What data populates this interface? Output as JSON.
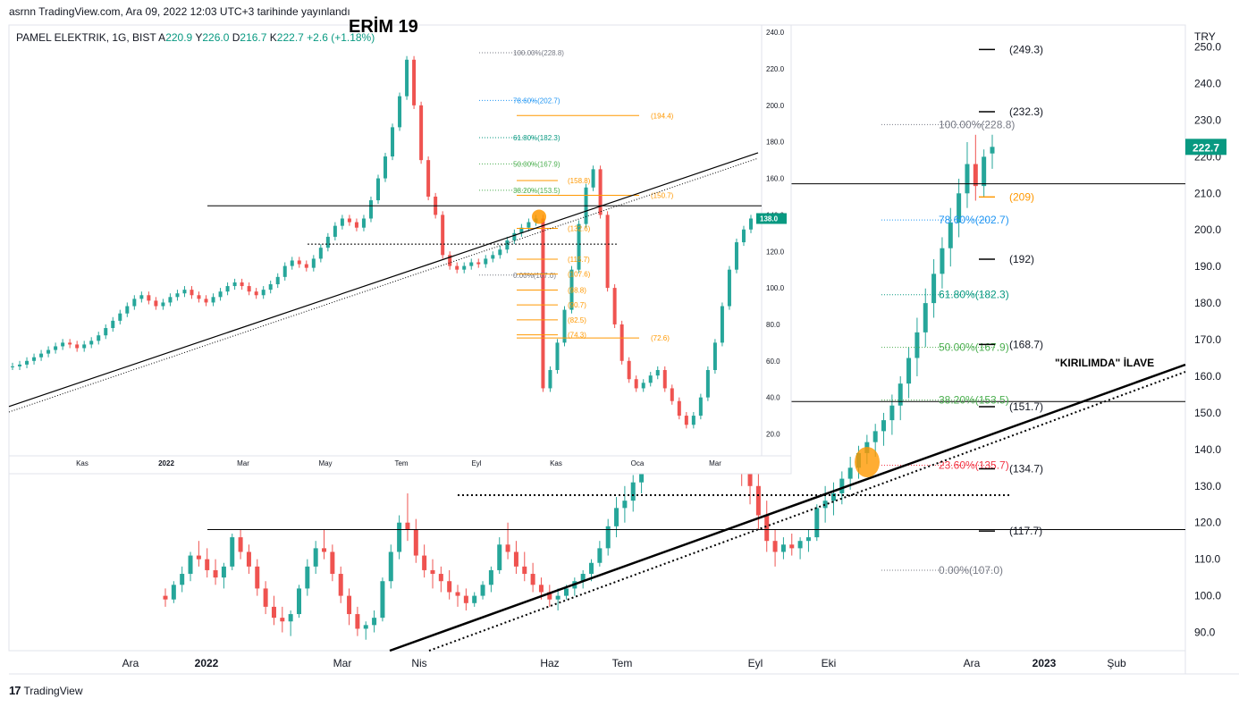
{
  "header": {
    "text": "asrnn TradingView.com, Ara 09, 2022 12:03 UTC+3 tarihinde yayınlandı"
  },
  "footer": {
    "brand": "TradingView",
    "logo_glyph": "17"
  },
  "colors": {
    "up": "#26a69a",
    "down": "#ef5350",
    "fib_gray": "#787b86",
    "fib_blue": "#2196f3",
    "fib_teal": "#089981",
    "fib_green": "#4caf50",
    "fib_red": "#f23645",
    "orange": "#ff9800",
    "axis_text": "#131722",
    "grid": "#e0e3eb"
  },
  "chart_data": [
    {
      "type": "candlestick",
      "title": "",
      "symbol_line": {
        "name": "PAMEL ELEKTRIK, 1G, BIST",
        "open_label": "A",
        "open": "220.9",
        "high_label": "Y",
        "high": "226.0",
        "low_label": "D",
        "low": "216.7",
        "close_label": "K",
        "close": "222.7",
        "change": "+2.6 (+1.18%)"
      },
      "currency": "TRY",
      "last_price": "222.7",
      "y_ticks": [
        "250.0",
        "240.0",
        "230.0",
        "220.0",
        "210.0",
        "200.0",
        "190.0",
        "180.0",
        "170.0",
        "160.0",
        "150.0",
        "140.0",
        "130.0",
        "120.0",
        "110.0",
        "100.0",
        "90.0"
      ],
      "ylim": [
        85,
        256
      ],
      "x_ticks": [
        "Ara",
        "2022",
        "Mar",
        "Nis",
        "Haz",
        "Tem",
        "Eyl",
        "Eki",
        "Ara",
        "2023",
        "Şub"
      ],
      "fibonacci": [
        {
          "label": "100.00%(228.8)",
          "value": 228.8,
          "color": "fib_gray"
        },
        {
          "label": "78.60%(202.7)",
          "value": 202.7,
          "color": "fib_blue"
        },
        {
          "label": "61.80%(182.3)",
          "value": 182.3,
          "color": "fib_teal"
        },
        {
          "label": "50.00%(167.9)",
          "value": 167.9,
          "color": "fib_green"
        },
        {
          "label": "38.20%(153.5)",
          "value": 153.5,
          "color": "fib_green"
        },
        {
          "label": "23.60%(135.7)",
          "value": 135.7,
          "color": "fib_red"
        },
        {
          "label": "0.00%(107.0)",
          "value": 107.0,
          "color": "fib_gray"
        }
      ],
      "levels": [
        {
          "label": "(249.3)",
          "value": 249.3,
          "color": "axis_text"
        },
        {
          "label": "(232.3)",
          "value": 232.3,
          "color": "axis_text"
        },
        {
          "label": "(209)",
          "value": 209,
          "color": "orange"
        },
        {
          "label": "(192)",
          "value": 192,
          "color": "axis_text"
        },
        {
          "label": "(168.7)",
          "value": 168.7,
          "color": "axis_text"
        },
        {
          "label": "(151.7)",
          "value": 151.7,
          "color": "axis_text"
        },
        {
          "label": "(134.7)",
          "value": 134.7,
          "color": "axis_text"
        },
        {
          "label": "(117.7)",
          "value": 117.7,
          "color": "axis_text"
        }
      ],
      "horizontal_lines": [
        212.6,
        153.1,
        118.1
      ],
      "dotted_level": 127.5,
      "annotation": "\"KIRILIMDA\" İLAVE",
      "series": [
        {
          "name": "",
          "ohlc": [
            [
              100,
              102,
              97,
              99
            ],
            [
              99,
              104,
              98,
              103
            ],
            [
              103,
              108,
              101,
              106
            ],
            [
              106,
              112,
              104,
              111
            ],
            [
              111,
              115,
              108,
              110
            ],
            [
              110,
              113,
              105,
              107
            ],
            [
              107,
              110,
              103,
              105
            ],
            [
              105,
              109,
              102,
              108
            ],
            [
              108,
              117,
              107,
              116
            ],
            [
              116,
              118,
              110,
              112
            ],
            [
              112,
              114,
              106,
              108
            ],
            [
              108,
              110,
              100,
              102
            ],
            [
              102,
              104,
              95,
              97
            ],
            [
              97,
              100,
              92,
              94
            ],
            [
              94,
              97,
              90,
              93
            ],
            [
              93,
              96,
              89,
              95
            ],
            [
              95,
              103,
              94,
              102
            ],
            [
              102,
              110,
              100,
              108
            ],
            [
              108,
              115,
              106,
              113
            ],
            [
              113,
              118,
              110,
              112
            ],
            [
              112,
              114,
              104,
              106
            ],
            [
              106,
              108,
              98,
              100
            ],
            [
              100,
              102,
              92,
              95
            ],
            [
              95,
              97,
              89,
              91
            ],
            [
              91,
              93,
              88,
              92
            ],
            [
              92,
              96,
              90,
              94
            ],
            [
              94,
              105,
              93,
              104
            ],
            [
              104,
              114,
              102,
              112
            ],
            [
              112,
              122,
              110,
              120
            ],
            [
              120,
              128,
              115,
              118
            ],
            [
              118,
              121,
              109,
              111
            ],
            [
              111,
              114,
              105,
              107
            ],
            [
              107,
              110,
              102,
              106
            ],
            [
              106,
              108,
              101,
              104
            ],
            [
              104,
              107,
              99,
              101
            ],
            [
              101,
              103,
              97,
              100
            ],
            [
              100,
              102,
              96,
              98
            ],
            [
              98,
              101,
              97,
              100
            ],
            [
              100,
              104,
              99,
              103
            ],
            [
              103,
              108,
              101,
              107
            ],
            [
              107,
              116,
              106,
              114
            ],
            [
              114,
              120,
              110,
              112
            ],
            [
              112,
              115,
              106,
              108
            ],
            [
              108,
              112,
              104,
              106
            ],
            [
              106,
              109,
              101,
              103
            ],
            [
              103,
              105,
              99,
              101
            ],
            [
              101,
              103,
              97,
              99
            ],
            [
              99,
              102,
              96,
              100
            ],
            [
              100,
              103,
              99,
              102
            ],
            [
              102,
              105,
              100,
              104
            ],
            [
              104,
              107,
              102,
              106
            ],
            [
              106,
              110,
              104,
              109
            ],
            [
              109,
              115,
              108,
              113
            ],
            [
              113,
              121,
              111,
              119
            ],
            [
              119,
              127,
              116,
              124
            ],
            [
              124,
              130,
              120,
              126
            ],
            [
              126,
              133,
              123,
              131
            ],
            [
              131,
              140,
              128,
              137
            ],
            [
              137,
              146,
              134,
              144
            ],
            [
              144,
              152,
              140,
              148
            ],
            [
              148,
              158,
              145,
              154
            ],
            [
              154,
              164,
              150,
              161
            ],
            [
              161,
              172,
              158,
              168
            ],
            [
              168,
              180,
              165,
              175
            ],
            [
              175,
              186,
              170,
              182
            ],
            [
              182,
              190,
              176,
              185
            ],
            [
              185,
              189,
              160,
              165
            ],
            [
              165,
              168,
              140,
              145
            ],
            [
              145,
              150,
              135,
              142
            ],
            [
              142,
              146,
              130,
              135
            ],
            [
              135,
              140,
              125,
              130
            ],
            [
              130,
              134,
              118,
              122
            ],
            [
              122,
              126,
              112,
              115
            ],
            [
              115,
              118,
              108,
              112
            ],
            [
              112,
              116,
              110,
              114
            ],
            [
              114,
              117,
              111,
              113
            ],
            [
              113,
              116,
              110,
              115
            ],
            [
              115,
              118,
              112,
              116
            ],
            [
              116,
              125,
              115,
              124
            ],
            [
              124,
              130,
              120,
              126
            ],
            [
              126,
              131,
              122,
              128
            ],
            [
              128,
              134,
              125,
              132
            ],
            [
              132,
              138,
              129,
              135
            ],
            [
              135,
              141,
              132,
              139
            ],
            [
              139,
              144,
              136,
              142
            ],
            [
              142,
              147,
              138,
              145
            ],
            [
              145,
              150,
              141,
              148
            ],
            [
              148,
              155,
              144,
              152
            ],
            [
              152,
              160,
              148,
              158
            ],
            [
              158,
              168,
              154,
              165
            ],
            [
              165,
              176,
              160,
              172
            ],
            [
              172,
              184,
              168,
              180
            ],
            [
              180,
              192,
              176,
              188
            ],
            [
              188,
              198,
              184,
              195
            ],
            [
              195,
              206,
              190,
              202
            ],
            [
              202,
              214,
              198,
              210
            ],
            [
              210,
              224,
              206,
              218
            ],
            [
              218,
              226,
              208,
              212
            ],
            [
              212,
              222,
              209,
              220
            ],
            [
              220.9,
              226,
              216.7,
              222.7
            ]
          ]
        }
      ]
    },
    {
      "type": "candlestick",
      "title": "ERİM 19",
      "y_ticks": [
        "240.0",
        "220.0",
        "200.0",
        "180.0",
        "160.0",
        "140.0",
        "120.0",
        "100.0",
        "80.0",
        "60.0",
        "40.0",
        "20.0"
      ],
      "ylim": [
        8,
        244
      ],
      "last_price": "138.0",
      "x_ticks": [
        "Kas",
        "2022",
        "Mar",
        "May",
        "Tem",
        "Eyl",
        "Kas",
        "Oca",
        "Mar"
      ],
      "fibonacci": [
        {
          "label": "100.00%(228.8)",
          "value": 228.8,
          "color": "fib_gray"
        },
        {
          "label": "78.60%(202.7)",
          "value": 202.7,
          "color": "fib_blue"
        },
        {
          "label": "61.80%(182.3)",
          "value": 182.3,
          "color": "fib_teal"
        },
        {
          "label": "50.00%(167.9)",
          "value": 167.9,
          "color": "fib_green"
        },
        {
          "label": "38.20%(153.5)",
          "value": 153.5,
          "color": "fib_green"
        },
        {
          "label": "0.00%(107.0)",
          "value": 107.0,
          "color": "fib_gray"
        }
      ],
      "orange_levels": [
        {
          "label": "(194.4)",
          "value": 194.4
        },
        {
          "label": "(158.8)",
          "value": 158.8
        },
        {
          "label": "(150.7)",
          "value": 150.7
        },
        {
          "label": "(132.6)",
          "value": 132.6
        },
        {
          "label": "(115.7)",
          "value": 115.7
        },
        {
          "label": "(107.6)",
          "value": 107.6
        },
        {
          "label": "(98.8)",
          "value": 98.8
        },
        {
          "label": "(90.7)",
          "value": 90.7
        },
        {
          "label": "(82.5)",
          "value": 82.5
        },
        {
          "label": "(74.3)",
          "value": 74.3
        },
        {
          "label": "(72.6)",
          "value": 72.6
        }
      ],
      "series": [
        {
          "name": "",
          "closes": [
            57,
            58,
            60,
            62,
            64,
            66,
            68,
            70,
            69,
            67,
            69,
            71,
            74,
            78,
            82,
            86,
            90,
            94,
            96,
            93,
            90,
            92,
            95,
            97,
            99,
            96,
            94,
            92,
            95,
            98,
            101,
            103,
            101,
            98,
            96,
            99,
            102,
            106,
            112,
            115,
            113,
            111,
            116,
            122,
            128,
            134,
            138,
            136,
            133,
            138,
            148,
            160,
            172,
            188,
            205,
            225,
            200,
            170,
            150,
            140,
            118,
            112,
            110,
            112,
            114,
            113,
            116,
            118,
            121,
            126,
            130,
            133,
            136,
            138,
            45,
            55,
            70,
            88,
            110,
            135,
            155,
            165,
            140,
            100,
            80,
            60,
            50,
            45,
            48,
            52,
            55,
            45,
            38,
            30,
            25,
            30,
            40,
            55,
            70,
            90,
            110,
            125,
            132,
            138
          ]
        }
      ]
    }
  ]
}
